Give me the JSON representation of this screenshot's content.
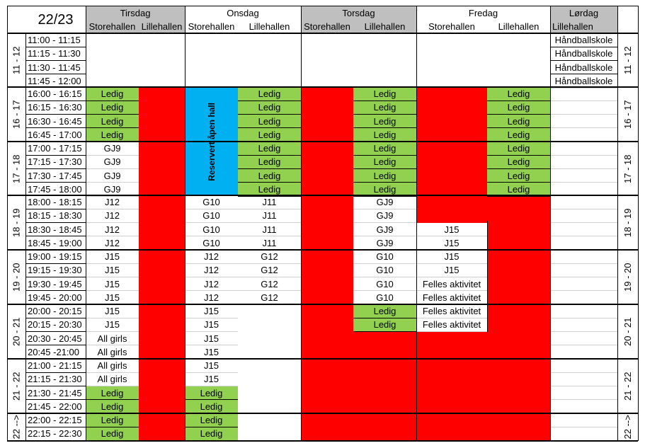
{
  "season": "22/23",
  "days": [
    {
      "name": "Tirsdag",
      "halls": [
        "Storehallen",
        "Lillehallen"
      ]
    },
    {
      "name": "Onsdag",
      "halls": [
        "Storehallen",
        "Lillehallen"
      ]
    },
    {
      "name": "Torsdag",
      "halls": [
        "Storehallen",
        "Lillehallen"
      ]
    },
    {
      "name": "Fredag",
      "halls": [
        "Storehallen",
        "Lillehallen"
      ]
    },
    {
      "name": "Lørdag",
      "halls": [
        "Lillehallen"
      ]
    }
  ],
  "hour_groups": [
    {
      "label": "11 - 12",
      "rows": 4
    },
    {
      "label": "16 - 17",
      "rows": 4
    },
    {
      "label": "17 - 18",
      "rows": 4
    },
    {
      "label": "18 - 19",
      "rows": 4
    },
    {
      "label": "19 - 20",
      "rows": 4
    },
    {
      "label": "20 - 21",
      "rows": 4
    },
    {
      "label": "21 - 22",
      "rows": 4
    },
    {
      "label": "22 -->",
      "rows": 2
    }
  ],
  "time_slots": [
    "11:00 - 11:15",
    "11:15 - 11:30",
    "11:30 - 11:45",
    "11:45 - 12:00",
    "16:00 - 16:15",
    "16:15 - 16:30",
    "16:30 - 16:45",
    "16:45 - 17:00",
    "17:00 - 17:15",
    "17:15 - 17:30",
    "17:30 - 17:45",
    "17:45 - 18:00",
    "18:00 - 18:15",
    "18:15 - 18:30",
    "18:30 - 18:45",
    "18:45 - 19:00",
    "19:00 - 19:15",
    "19:15 - 19:30",
    "19:30 - 19:45",
    "19:45 - 20:00",
    "20:00 - 20:15",
    "20:15 - 20:30",
    "20:30 - 20:45",
    "20:45 -21:00",
    "21:00 - 21:15",
    "21:15 - 21:30",
    "21:30 - 21:45",
    "21:45 - 22:00",
    "22:00 - 22:15",
    "22:15 - 22:30"
  ],
  "colors": {
    "free": "#92d050",
    "blocked": "#ff0000",
    "reserved": "#00b0f0",
    "header": "#bfbfbf"
  },
  "bookings": [
    {
      "col": 0,
      "row": 4,
      "span": 1,
      "text": "Ledig",
      "fill": "green"
    },
    {
      "col": 0,
      "row": 5,
      "span": 1,
      "text": "Ledig",
      "fill": "green"
    },
    {
      "col": 0,
      "row": 6,
      "span": 1,
      "text": "Ledig",
      "fill": "green"
    },
    {
      "col": 0,
      "row": 7,
      "span": 1,
      "text": "Ledig",
      "fill": "green"
    },
    {
      "col": 0,
      "row": 8,
      "span": 1,
      "text": "GJ9"
    },
    {
      "col": 0,
      "row": 9,
      "span": 1,
      "text": "GJ9"
    },
    {
      "col": 0,
      "row": 10,
      "span": 1,
      "text": "GJ9"
    },
    {
      "col": 0,
      "row": 11,
      "span": 1,
      "text": "GJ9"
    },
    {
      "col": 0,
      "row": 12,
      "span": 1,
      "text": "J12"
    },
    {
      "col": 0,
      "row": 13,
      "span": 1,
      "text": "J12"
    },
    {
      "col": 0,
      "row": 14,
      "span": 1,
      "text": "J12"
    },
    {
      "col": 0,
      "row": 15,
      "span": 1,
      "text": "J12"
    },
    {
      "col": 0,
      "row": 16,
      "span": 1,
      "text": "J15"
    },
    {
      "col": 0,
      "row": 17,
      "span": 1,
      "text": "J15"
    },
    {
      "col": 0,
      "row": 18,
      "span": 1,
      "text": "J15"
    },
    {
      "col": 0,
      "row": 19,
      "span": 1,
      "text": "J15"
    },
    {
      "col": 0,
      "row": 20,
      "span": 1,
      "text": "J15"
    },
    {
      "col": 0,
      "row": 21,
      "span": 1,
      "text": "J15"
    },
    {
      "col": 0,
      "row": 22,
      "span": 1,
      "text": "All girls"
    },
    {
      "col": 0,
      "row": 23,
      "span": 1,
      "text": "All girls"
    },
    {
      "col": 0,
      "row": 24,
      "span": 1,
      "text": "All girls"
    },
    {
      "col": 0,
      "row": 25,
      "span": 1,
      "text": "All girls"
    },
    {
      "col": 0,
      "row": 26,
      "span": 1,
      "text": "Ledig",
      "fill": "green"
    },
    {
      "col": 0,
      "row": 27,
      "span": 1,
      "text": "Ledig",
      "fill": "green"
    },
    {
      "col": 0,
      "row": 28,
      "span": 1,
      "text": "Ledig",
      "fill": "green"
    },
    {
      "col": 0,
      "row": 29,
      "span": 1,
      "text": "Ledig",
      "fill": "green"
    },
    {
      "col": 1,
      "row": 4,
      "span": 26,
      "text": "",
      "fill": "red"
    },
    {
      "col": 2,
      "row": 4,
      "span": 8,
      "text": "Reservert åpen hall",
      "fill": "blue",
      "vertical": true
    },
    {
      "col": 2,
      "row": 12,
      "span": 1,
      "text": "G10"
    },
    {
      "col": 2,
      "row": 13,
      "span": 1,
      "text": "G10"
    },
    {
      "col": 2,
      "row": 14,
      "span": 1,
      "text": "G10"
    },
    {
      "col": 2,
      "row": 15,
      "span": 1,
      "text": "G10"
    },
    {
      "col": 2,
      "row": 16,
      "span": 1,
      "text": "J12"
    },
    {
      "col": 2,
      "row": 17,
      "span": 1,
      "text": "J12"
    },
    {
      "col": 2,
      "row": 18,
      "span": 1,
      "text": "J12"
    },
    {
      "col": 2,
      "row": 19,
      "span": 1,
      "text": "J12"
    },
    {
      "col": 2,
      "row": 20,
      "span": 1,
      "text": "J15"
    },
    {
      "col": 2,
      "row": 21,
      "span": 1,
      "text": "J15"
    },
    {
      "col": 2,
      "row": 22,
      "span": 1,
      "text": "J15"
    },
    {
      "col": 2,
      "row": 23,
      "span": 1,
      "text": "J15"
    },
    {
      "col": 2,
      "row": 24,
      "span": 1,
      "text": "J15"
    },
    {
      "col": 2,
      "row": 25,
      "span": 1,
      "text": "J15"
    },
    {
      "col": 2,
      "row": 26,
      "span": 1,
      "text": "Ledig",
      "fill": "green"
    },
    {
      "col": 2,
      "row": 27,
      "span": 1,
      "text": "Ledig",
      "fill": "green"
    },
    {
      "col": 2,
      "row": 28,
      "span": 1,
      "text": "Ledig",
      "fill": "green"
    },
    {
      "col": 2,
      "row": 29,
      "span": 1,
      "text": "Ledig",
      "fill": "green"
    },
    {
      "col": 3,
      "row": 4,
      "span": 1,
      "text": "Ledig",
      "fill": "green"
    },
    {
      "col": 3,
      "row": 5,
      "span": 1,
      "text": "Ledig",
      "fill": "green"
    },
    {
      "col": 3,
      "row": 6,
      "span": 1,
      "text": "Ledig",
      "fill": "green"
    },
    {
      "col": 3,
      "row": 7,
      "span": 1,
      "text": "Ledig",
      "fill": "green"
    },
    {
      "col": 3,
      "row": 8,
      "span": 1,
      "text": "Ledig",
      "fill": "green"
    },
    {
      "col": 3,
      "row": 9,
      "span": 1,
      "text": "Ledig",
      "fill": "green"
    },
    {
      "col": 3,
      "row": 10,
      "span": 1,
      "text": "Ledig",
      "fill": "green"
    },
    {
      "col": 3,
      "row": 11,
      "span": 1,
      "text": "Ledig",
      "fill": "green"
    },
    {
      "col": 3,
      "row": 12,
      "span": 1,
      "text": "J11"
    },
    {
      "col": 3,
      "row": 13,
      "span": 1,
      "text": "J11"
    },
    {
      "col": 3,
      "row": 14,
      "span": 1,
      "text": "J11"
    },
    {
      "col": 3,
      "row": 15,
      "span": 1,
      "text": "J11"
    },
    {
      "col": 3,
      "row": 16,
      "span": 1,
      "text": "G12"
    },
    {
      "col": 3,
      "row": 17,
      "span": 1,
      "text": "G12"
    },
    {
      "col": 3,
      "row": 18,
      "span": 1,
      "text": "G12"
    },
    {
      "col": 3,
      "row": 19,
      "span": 1,
      "text": "G12"
    },
    {
      "col": 4,
      "row": 4,
      "span": 26,
      "text": "",
      "fill": "red"
    },
    {
      "col": 5,
      "row": 4,
      "span": 1,
      "text": "Ledig",
      "fill": "green"
    },
    {
      "col": 5,
      "row": 5,
      "span": 1,
      "text": "Ledig",
      "fill": "green"
    },
    {
      "col": 5,
      "row": 6,
      "span": 1,
      "text": "Ledig",
      "fill": "green"
    },
    {
      "col": 5,
      "row": 7,
      "span": 1,
      "text": "Ledig",
      "fill": "green"
    },
    {
      "col": 5,
      "row": 8,
      "span": 1,
      "text": "Ledig",
      "fill": "green"
    },
    {
      "col": 5,
      "row": 9,
      "span": 1,
      "text": "Ledig",
      "fill": "green"
    },
    {
      "col": 5,
      "row": 10,
      "span": 1,
      "text": "Ledig",
      "fill": "green"
    },
    {
      "col": 5,
      "row": 11,
      "span": 1,
      "text": "Ledig",
      "fill": "green"
    },
    {
      "col": 5,
      "row": 12,
      "span": 1,
      "text": "GJ9"
    },
    {
      "col": 5,
      "row": 13,
      "span": 1,
      "text": "GJ9"
    },
    {
      "col": 5,
      "row": 14,
      "span": 1,
      "text": "GJ9"
    },
    {
      "col": 5,
      "row": 15,
      "span": 1,
      "text": "GJ9"
    },
    {
      "col": 5,
      "row": 16,
      "span": 1,
      "text": "G10"
    },
    {
      "col": 5,
      "row": 17,
      "span": 1,
      "text": "G10"
    },
    {
      "col": 5,
      "row": 18,
      "span": 1,
      "text": "G10"
    },
    {
      "col": 5,
      "row": 19,
      "span": 1,
      "text": "G10"
    },
    {
      "col": 5,
      "row": 20,
      "span": 1,
      "text": "Ledig",
      "fill": "green"
    },
    {
      "col": 5,
      "row": 21,
      "span": 1,
      "text": "Ledig",
      "fill": "green"
    },
    {
      "col": 5,
      "row": 22,
      "span": 8,
      "text": "",
      "fill": "red"
    },
    {
      "col": 6,
      "row": 4,
      "span": 10,
      "text": "",
      "fill": "red"
    },
    {
      "col": 6,
      "row": 14,
      "span": 1,
      "text": "J15"
    },
    {
      "col": 6,
      "row": 15,
      "span": 1,
      "text": "J15"
    },
    {
      "col": 6,
      "row": 16,
      "span": 1,
      "text": "J15"
    },
    {
      "col": 6,
      "row": 17,
      "span": 1,
      "text": "J15"
    },
    {
      "col": 6,
      "row": 18,
      "span": 1,
      "text": "Felles aktivitet"
    },
    {
      "col": 6,
      "row": 19,
      "span": 1,
      "text": "Felles aktivitet"
    },
    {
      "col": 6,
      "row": 20,
      "span": 1,
      "text": "Felles aktivitet"
    },
    {
      "col": 6,
      "row": 21,
      "span": 1,
      "text": "Felles aktivitet"
    },
    {
      "col": 6,
      "row": 22,
      "span": 8,
      "text": "",
      "fill": "red"
    },
    {
      "col": 7,
      "row": 4,
      "span": 1,
      "text": "Ledig",
      "fill": "green"
    },
    {
      "col": 7,
      "row": 5,
      "span": 1,
      "text": "Ledig",
      "fill": "green"
    },
    {
      "col": 7,
      "row": 6,
      "span": 1,
      "text": "Ledig",
      "fill": "green"
    },
    {
      "col": 7,
      "row": 7,
      "span": 1,
      "text": "Ledig",
      "fill": "green"
    },
    {
      "col": 7,
      "row": 8,
      "span": 1,
      "text": "Ledig",
      "fill": "green"
    },
    {
      "col": 7,
      "row": 9,
      "span": 1,
      "text": "Ledig",
      "fill": "green"
    },
    {
      "col": 7,
      "row": 10,
      "span": 1,
      "text": "Ledig",
      "fill": "green"
    },
    {
      "col": 7,
      "row": 11,
      "span": 1,
      "text": "Ledig",
      "fill": "green"
    },
    {
      "col": 7,
      "row": 12,
      "span": 18,
      "text": "",
      "fill": "red"
    },
    {
      "col": 8,
      "row": 0,
      "span": 1,
      "text": "Håndballskole"
    },
    {
      "col": 8,
      "row": 1,
      "span": 1,
      "text": "Håndballskole"
    },
    {
      "col": 8,
      "row": 2,
      "span": 1,
      "text": "Håndballskole"
    },
    {
      "col": 8,
      "row": 3,
      "span": 1,
      "text": "Håndballskole"
    }
  ]
}
